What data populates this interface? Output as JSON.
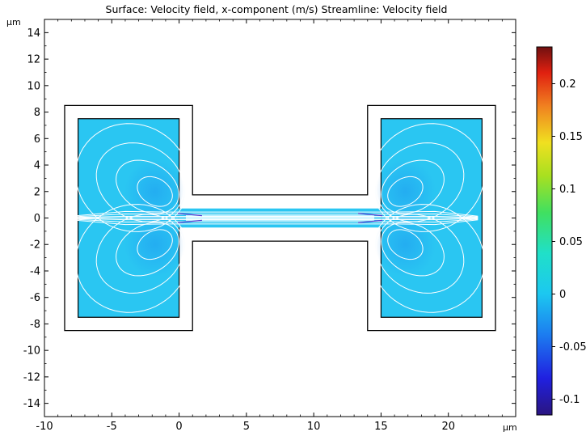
{
  "chart_data": {
    "type": "heatmap",
    "title": "Surface: Velocity field, x-component (m/s)  Streamline: Velocity field",
    "xunit": "µm",
    "yunit": "µm",
    "xlim": [
      -10,
      25
    ],
    "ylim": [
      -15,
      15
    ],
    "xticks": [
      -10,
      -5,
      0,
      5,
      10,
      15,
      20
    ],
    "yticks": [
      14,
      12,
      10,
      8,
      6,
      4,
      2,
      0,
      -2,
      -4,
      -6,
      -8,
      -10,
      -12,
      -14
    ],
    "xtick_labels": [
      "-10",
      "-5",
      "0",
      "5",
      "10",
      "15",
      "20"
    ],
    "ytick_labels": [
      "14",
      "12",
      "10",
      "8",
      "6",
      "4",
      "2",
      "0",
      "-2",
      "-4",
      "-6",
      "-8",
      "-10",
      "-12",
      "-14"
    ],
    "colorbar": {
      "min": -0.115,
      "max": 0.235,
      "ticks": [
        0.2,
        0.15,
        0.1,
        0.05,
        0,
        -0.05,
        -0.1
      ],
      "tick_labels": [
        "0.2",
        "0.15",
        "0.1",
        "0.05",
        "0",
        "-0.05",
        "-0.1"
      ]
    },
    "geometry": {
      "outer_left_chamber": {
        "x": [
          -8.5,
          1
        ],
        "y": [
          -8.5,
          8.5
        ]
      },
      "outer_channel": {
        "x": [
          1,
          14
        ],
        "y": [
          -1.75,
          1.75
        ]
      },
      "outer_right_chamber": {
        "x": [
          14,
          23.5
        ],
        "y": [
          -8.5,
          8.5
        ]
      },
      "inner_left_box": {
        "x": [
          -7.5,
          0
        ],
        "y": [
          -7.5,
          7.5
        ]
      },
      "inner_channel": {
        "x": [
          0,
          15
        ],
        "y": [
          -0.75,
          0.75
        ]
      },
      "inner_right_box": {
        "x": [
          15,
          22.5
        ],
        "y": [
          -7.5,
          7.5
        ]
      }
    },
    "surface_value_in_boxes": 0,
    "vortices": [
      {
        "x": -1.8,
        "y": 2.0,
        "sign": -1
      },
      {
        "x": -1.8,
        "y": -2.0,
        "sign": 1
      },
      {
        "x": 16.8,
        "y": 2.0,
        "sign": 1
      },
      {
        "x": 16.8,
        "y": -2.0,
        "sign": -1
      }
    ],
    "streamline_color": "#ffffff",
    "box_color": "#2ac6f2",
    "outline_color": "#000000"
  }
}
